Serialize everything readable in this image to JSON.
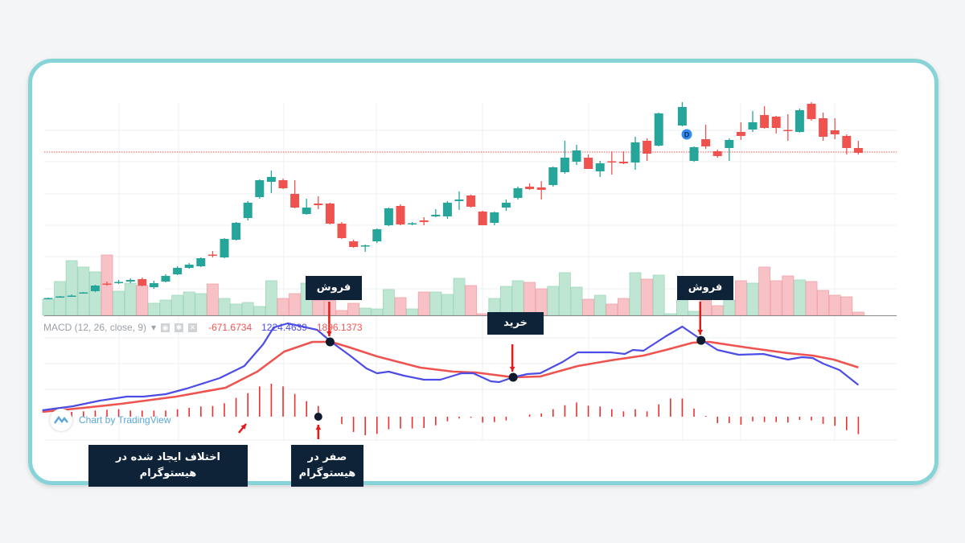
{
  "colors": {
    "up": "#26a69a",
    "down": "#ef5350",
    "vol_up": "#bfe5d3",
    "vol_down": "#f7c1c5",
    "macd": "#4c4ce6",
    "signal": "#ef5350",
    "hist": "#ef2f2f",
    "note_bg": "#0e2238",
    "frame": "#86d4d8"
  },
  "legend": {
    "label": "MACD (12, 26, close, 9)",
    "hist_value": "-671.6734",
    "macd_value": "1224.4639",
    "signal_value": "1896.1373",
    "icons": [
      "eye-icon",
      "gear-icon",
      "close-icon"
    ]
  },
  "watermark": {
    "text": "Chart by TradingView"
  },
  "dividend_marker": "D",
  "annotations": {
    "sell1": "فروش",
    "buy": "خرید",
    "sell2": "فروش",
    "divergence": "اختلاف ایجاد شده در هیستوگرام",
    "zero": "صفر در هیستوگرام"
  },
  "chart_data": [
    {
      "type": "candlestick",
      "title": "",
      "price_line": 211,
      "grid": true,
      "ohlc": [
        [
          28.5,
          30,
          28,
          29.5
        ],
        [
          30.5,
          32,
          30,
          31.5
        ],
        [
          31.5,
          34,
          31,
          32.5
        ],
        [
          35.5,
          37,
          35,
          36.5
        ],
        [
          38,
          46,
          37,
          45
        ],
        [
          47.5,
          50,
          45,
          46.5
        ],
        [
          48,
          52,
          47,
          49.5
        ],
        [
          50,
          54,
          48,
          52
        ],
        [
          53,
          55,
          44,
          45
        ],
        [
          43,
          51,
          41,
          48
        ],
        [
          50,
          59,
          49,
          57
        ],
        [
          59,
          69,
          58,
          67
        ],
        [
          67,
          73,
          66,
          71
        ],
        [
          69,
          80,
          68,
          79
        ],
        [
          83.5,
          88,
          80,
          82.5
        ],
        [
          80,
          104,
          79,
          103
        ],
        [
          102,
          124,
          101,
          123
        ],
        [
          129,
          150,
          126,
          148
        ],
        [
          155,
          177,
          153,
          176
        ],
        [
          174,
          188,
          160,
          180
        ],
        [
          176,
          178,
          165,
          166
        ],
        [
          159,
          176,
          141,
          142
        ],
        [
          134,
          153,
          133,
          142
        ],
        [
          147,
          156,
          140,
          145
        ],
        [
          147,
          148,
          121,
          122
        ],
        [
          122,
          124,
          103,
          104
        ],
        [
          100,
          102,
          92,
          93
        ],
        [
          94,
          96,
          87,
          95
        ],
        [
          100,
          116,
          98,
          115
        ],
        [
          120,
          142,
          119,
          141
        ],
        [
          144,
          146,
          120,
          121
        ],
        [
          121,
          124,
          120,
          122.5
        ],
        [
          126,
          130,
          120,
          124
        ],
        [
          131,
          140,
          130,
          133
        ],
        [
          131,
          150,
          128,
          148
        ],
        [
          150,
          162,
          139,
          152
        ],
        [
          157,
          158,
          142,
          143
        ],
        [
          137,
          138,
          120,
          120
        ],
        [
          123,
          137,
          120,
          136
        ],
        [
          142,
          152,
          138,
          148
        ],
        [
          154,
          168,
          152,
          166
        ],
        [
          168,
          172,
          164,
          165
        ],
        [
          167,
          175,
          152,
          164
        ],
        [
          170,
          193,
          168,
          192
        ],
        [
          186,
          225,
          184,
          204
        ],
        [
          199,
          220,
          195,
          213
        ],
        [
          204,
          208,
          190,
          190
        ],
        [
          187,
          200,
          180,
          197
        ],
        [
          199.5,
          212,
          183,
          198.5
        ],
        [
          199,
          212,
          196,
          197
        ],
        [
          198,
          230,
          189,
          223
        ],
        [
          225,
          228,
          200,
          209
        ],
        [
          219,
          260,
          218,
          259
        ],
        null,
        [
          244,
          273,
          243,
          267
        ],
        [
          200,
          218,
          199,
          217
        ],
        [
          227,
          245,
          215,
          218
        ],
        [
          212,
          214,
          204,
          206
        ],
        [
          216,
          228,
          200,
          226
        ],
        [
          236,
          248,
          226,
          231
        ],
        [
          239,
          262,
          236,
          248
        ],
        [
          257,
          268,
          240,
          241
        ],
        [
          255,
          256,
          234,
          241
        ],
        [
          238.5,
          258,
          225,
          237.5
        ],
        [
          236,
          265,
          235,
          263
        ],
        [
          271,
          273,
          250,
          252
        ],
        [
          253,
          260,
          225,
          230
        ],
        [
          238,
          253,
          227,
          233
        ],
        [
          231,
          233,
          208,
          216
        ],
        [
          216,
          225,
          208,
          210
        ]
      ],
      "volume": [
        20,
        42,
        68,
        60,
        54,
        75,
        30,
        40,
        37,
        15,
        19,
        25,
        29,
        27,
        39,
        21,
        14,
        16,
        11,
        43,
        21,
        27,
        40,
        19,
        19,
        6,
        15,
        9,
        8,
        32,
        22,
        8,
        29,
        29,
        26,
        46,
        37,
        2,
        21,
        36,
        43,
        41,
        33,
        36,
        53,
        35,
        20,
        25,
        14,
        21,
        53,
        45,
        50,
        2,
        19,
        5,
        19,
        12,
        19,
        43,
        40,
        60,
        43,
        49,
        44,
        42,
        31,
        25,
        23,
        4
      ],
      "dividend_bar": 55
    },
    {
      "type": "macd",
      "params": "12, 26, close, 9",
      "macd": [
        [
          -0.5,
          248
        ],
        [
          2.1,
          403
        ],
        [
          4.4,
          620
        ],
        [
          6.7,
          775
        ],
        [
          8.1,
          775
        ],
        [
          10,
          868
        ],
        [
          11.8,
          1085
        ],
        [
          14.6,
          1488
        ],
        [
          16.7,
          1953
        ],
        [
          18.3,
          2790
        ],
        [
          19.2,
          3441
        ],
        [
          20.4,
          3596
        ],
        [
          22.9,
          3348
        ],
        [
          24.1,
          2883
        ],
        [
          25.7,
          2356
        ],
        [
          27.1,
          1860
        ],
        [
          28,
          1674
        ],
        [
          29,
          1736
        ],
        [
          30.3,
          1581
        ],
        [
          32,
          1426
        ],
        [
          33.4,
          1426
        ],
        [
          35.2,
          1674
        ],
        [
          36.2,
          1674
        ],
        [
          37.7,
          1364
        ],
        [
          38.4,
          1333
        ],
        [
          39.6,
          1519
        ],
        [
          40.8,
          1643
        ],
        [
          41.9,
          1674
        ],
        [
          43.8,
          2108
        ],
        [
          45.1,
          2480
        ],
        [
          47.9,
          2480
        ],
        [
          49.1,
          2418
        ],
        [
          49.8,
          2573
        ],
        [
          50.7,
          2542
        ],
        [
          52.6,
          3100
        ],
        [
          54,
          3472
        ],
        [
          55.8,
          2914
        ],
        [
          57,
          2573
        ],
        [
          58.8,
          2387
        ],
        [
          60.9,
          2418
        ],
        [
          63,
          2201
        ],
        [
          64.2,
          2294
        ],
        [
          65.1,
          2263
        ],
        [
          66,
          2046
        ],
        [
          67.4,
          1798
        ],
        [
          69,
          1224
        ]
      ],
      "signal": [
        [
          -0.5,
          186
        ],
        [
          3,
          341
        ],
        [
          6.2,
          496
        ],
        [
          10.9,
          775
        ],
        [
          15.1,
          1116
        ],
        [
          17.8,
          1736
        ],
        [
          20.1,
          2511
        ],
        [
          22.5,
          2883
        ],
        [
          24.1,
          2883
        ],
        [
          25.7,
          2666
        ],
        [
          28,
          2325
        ],
        [
          31.7,
          1891
        ],
        [
          34.5,
          1736
        ],
        [
          36.4,
          1705
        ],
        [
          39.6,
          1519
        ],
        [
          41.9,
          1550
        ],
        [
          45.1,
          1953
        ],
        [
          47.9,
          2170
        ],
        [
          50.7,
          2356
        ],
        [
          52.6,
          2573
        ],
        [
          54.9,
          2852
        ],
        [
          56.3,
          2883
        ],
        [
          59.5,
          2666
        ],
        [
          63,
          2449
        ],
        [
          65.1,
          2356
        ],
        [
          66.9,
          2201
        ],
        [
          69,
          1896
        ]
      ],
      "histogram_start": 2,
      "histogram": [
        186,
        207,
        238,
        269,
        289,
        238,
        238,
        238,
        238,
        289,
        341,
        393,
        413,
        517,
        723,
        909,
        1167,
        1271,
        1167,
        878,
        599,
        413,
        0,
        -279,
        -589,
        -713,
        -661,
        -486,
        -455,
        -455,
        -434,
        -331,
        -176,
        -72,
        -41,
        -227,
        -207,
        -145,
        0,
        83,
        124,
        289,
        444,
        548,
        424,
        393,
        289,
        207,
        289,
        207,
        475,
        702,
        702,
        310,
        31,
        -248,
        -248,
        -310,
        -176,
        -207,
        -207,
        -227,
        -124,
        -145,
        -279,
        -351,
        -517,
        -671
      ],
      "crossovers": [
        {
          "bar": 24,
          "value": 2883,
          "label": "sell1"
        },
        {
          "bar": 39.6,
          "value": 1519,
          "label": "buy"
        },
        {
          "bar": 55.6,
          "value": 2940,
          "label": "sell2"
        }
      ],
      "histogram_zero_bar": 23
    }
  ]
}
